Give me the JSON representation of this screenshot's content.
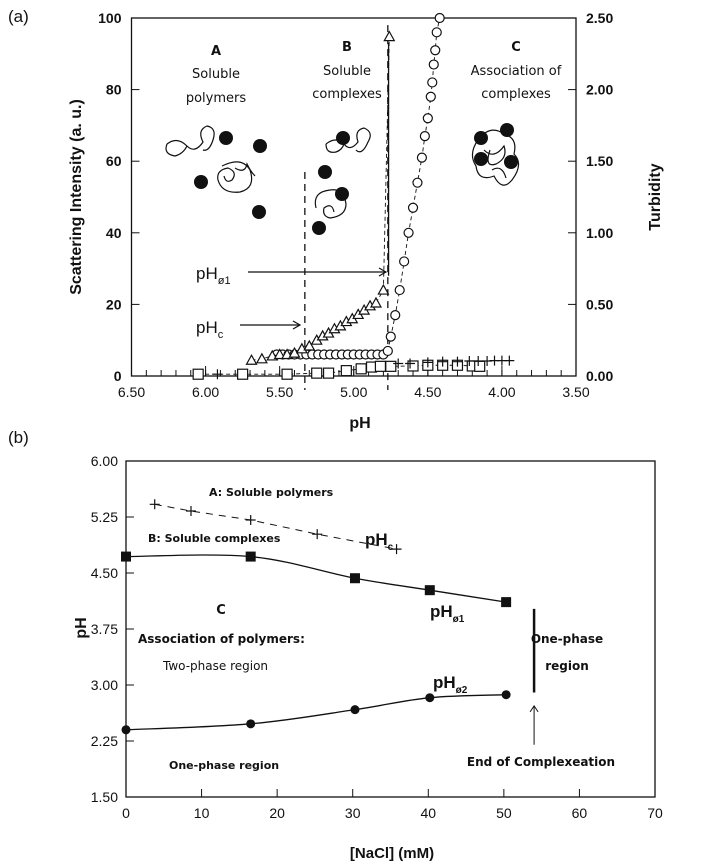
{
  "chart_data": [
    {
      "type": "scatter",
      "panel_label": "(a)",
      "xlabel": "pH",
      "ylabel": "Scattering Intensity (a. u.)",
      "y2label": "Turbidity",
      "xlim": [
        6.5,
        3.5
      ],
      "ylim": [
        0,
        100
      ],
      "y2lim": [
        0,
        2.5
      ],
      "x_ticks": [
        "6.50",
        "6.00",
        "5.50",
        "5.00",
        "4.50",
        "4.00",
        "3.50"
      ],
      "y_ticks": [
        "0",
        "20",
        "40",
        "60",
        "80",
        "100"
      ],
      "y2_ticks": [
        "0.00",
        "0.50",
        "1.00",
        "1.50",
        "2.00",
        "2.50"
      ],
      "series": [
        {
          "name": "Scattering intensity",
          "marker": "circle",
          "axis": "left",
          "x": [
            5.52,
            5.48,
            5.44,
            5.4,
            5.36,
            5.32,
            5.28,
            5.24,
            5.2,
            5.16,
            5.12,
            5.08,
            5.04,
            5.0,
            4.96,
            4.92,
            4.88,
            4.84,
            4.8,
            4.77,
            4.75,
            4.72,
            4.69,
            4.66,
            4.63,
            4.6,
            4.57,
            4.54,
            4.52,
            4.5,
            4.48,
            4.47,
            4.46,
            4.45,
            4.44,
            4.42
          ],
          "y": [
            6,
            6,
            6,
            6,
            6,
            6,
            6,
            6,
            6,
            6,
            6,
            6,
            6,
            6,
            6,
            6,
            6,
            6,
            6,
            7,
            11,
            17,
            24,
            32,
            40,
            47,
            54,
            61,
            67,
            72,
            78,
            82,
            87,
            91,
            96,
            100
          ]
        },
        {
          "name": "Turbidity",
          "marker": "triangle",
          "axis": "right",
          "x": [
            5.69,
            5.62,
            5.55,
            5.5,
            5.45,
            5.4,
            5.35,
            5.3,
            5.25,
            5.21,
            5.17,
            5.13,
            5.09,
            5.05,
            5.01,
            4.97,
            4.93,
            4.89,
            4.85,
            4.8,
            4.76
          ],
          "y": [
            0.11,
            0.12,
            0.14,
            0.15,
            0.15,
            0.16,
            0.19,
            0.21,
            0.25,
            0.28,
            0.3,
            0.33,
            0.35,
            0.38,
            0.4,
            0.43,
            0.46,
            0.49,
            0.51,
            0.6,
            2.37
          ]
        },
        {
          "name": "Squares",
          "marker": "square",
          "axis": "left",
          "x": [
            6.05,
            5.75,
            5.45,
            5.25,
            5.17,
            5.05,
            4.95,
            4.88,
            4.82,
            4.75,
            4.6,
            4.5,
            4.4,
            4.3,
            4.2,
            4.15
          ],
          "y": [
            0.5,
            0.5,
            0.5,
            0.8,
            0.8,
            1.5,
            2,
            2.5,
            2.7,
            2.7,
            2.8,
            3,
            3,
            3,
            2.8,
            2.7
          ]
        },
        {
          "name": "Crosses",
          "marker": "plus",
          "axis": "left",
          "x": [
            5.92,
            4.7,
            4.62,
            4.5,
            4.4,
            4.3,
            4.22,
            4.16,
            4.1,
            4.05,
            4.0,
            3.95
          ],
          "y": [
            0.5,
            3.5,
            3.5,
            3.8,
            4,
            4,
            4.2,
            4.2,
            4.2,
            4.3,
            4.3,
            4.3
          ]
        }
      ],
      "vlines": [
        {
          "x": 5.33,
          "style": "dashed"
        },
        {
          "x": 4.77,
          "style": "dashed"
        }
      ],
      "annotations": {
        "region_a_letter": "A",
        "region_a_l1": "Soluble",
        "region_a_l2": "polymers",
        "region_b_letter": "B",
        "region_b_l1": "Soluble",
        "region_b_l2": "complexes",
        "region_c_letter": "C",
        "region_c_l1": "Association of",
        "region_c_l2": "complexes",
        "ph_phi1": "pH",
        "ph_phi1_sub": "ø1",
        "ph_c": "pH",
        "ph_c_sub": "c"
      }
    },
    {
      "type": "line",
      "panel_label": "(b)",
      "xlabel": "[NaCl] (mM)",
      "ylabel": "pH",
      "xlim": [
        0,
        70
      ],
      "ylim": [
        1.5,
        6.0
      ],
      "x_ticks": [
        "0",
        "10",
        "20",
        "30",
        "40",
        "50",
        "60",
        "70"
      ],
      "y_ticks": [
        "1.50",
        "2.25",
        "3.00",
        "3.75",
        "4.50",
        "5.25",
        "6.00"
      ],
      "series": [
        {
          "name": "pHc",
          "marker": "plus",
          "style": "dashed",
          "x": [
            3.8,
            8.6,
            16.5,
            25.3,
            35.8
          ],
          "y": [
            5.42,
            5.33,
            5.21,
            5.02,
            4.82
          ]
        },
        {
          "name": "pHø1",
          "marker": "square",
          "style": "solid",
          "x": [
            0,
            16.5,
            30.3,
            40.2,
            50.3
          ],
          "y": [
            4.72,
            4.72,
            4.43,
            4.27,
            4.11
          ]
        },
        {
          "name": "pHø2",
          "marker": "circle",
          "style": "solid",
          "x": [
            0,
            16.5,
            30.3,
            40.2,
            50.3
          ],
          "y": [
            2.4,
            2.48,
            2.67,
            2.83,
            2.87
          ]
        }
      ],
      "annotations": {
        "region_a": "A:  Soluble polymers",
        "region_b": "B:  Soluble complexes",
        "label_phc": "pH",
        "label_phc_sub": "c",
        "label_phi1": "pH",
        "label_phi1_sub": "ø1",
        "label_phi2": "pH",
        "label_phi2_sub": "ø2",
        "region_c_letter": "C",
        "region_c_l1": "Association of polymers:",
        "region_c_l2": "Two-phase region",
        "one_phase_low": "One-phase  region",
        "one_phase_right_l1": "One-phase",
        "one_phase_right_l2": "region",
        "end_label": "End of Complexeation"
      }
    }
  ]
}
